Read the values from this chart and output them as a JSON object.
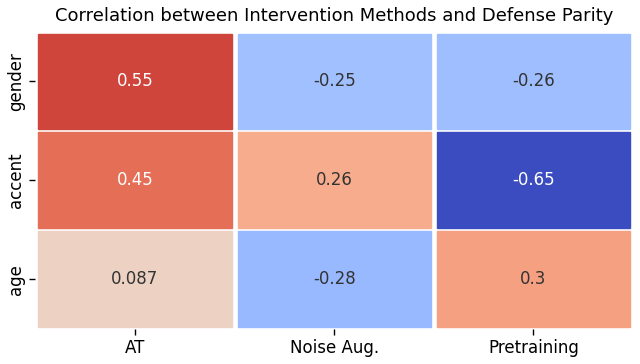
{
  "title": "Correlation between Intervention Methods and Defense Parity",
  "rows": [
    "gender",
    "accent",
    "age"
  ],
  "cols": [
    "AT",
    "Noise Aug.",
    "Pretraining"
  ],
  "values": [
    [
      0.55,
      -0.25,
      -0.26
    ],
    [
      0.45,
      0.26,
      -0.65
    ],
    [
      0.087,
      -0.28,
      0.3
    ]
  ],
  "labels": [
    [
      "0.55",
      "-0.25",
      "-0.26"
    ],
    [
      "0.45",
      "0.26",
      "-0.65"
    ],
    [
      "0.087",
      "-0.28",
      "0.3"
    ]
  ],
  "vmin": -0.65,
  "vmax": 0.65,
  "title_fontsize": 13,
  "label_fontsize": 12,
  "tick_fontsize": 12,
  "white_text_threshold": 0.4,
  "figwidth": 6.4,
  "figheight": 3.64,
  "dpi": 100
}
